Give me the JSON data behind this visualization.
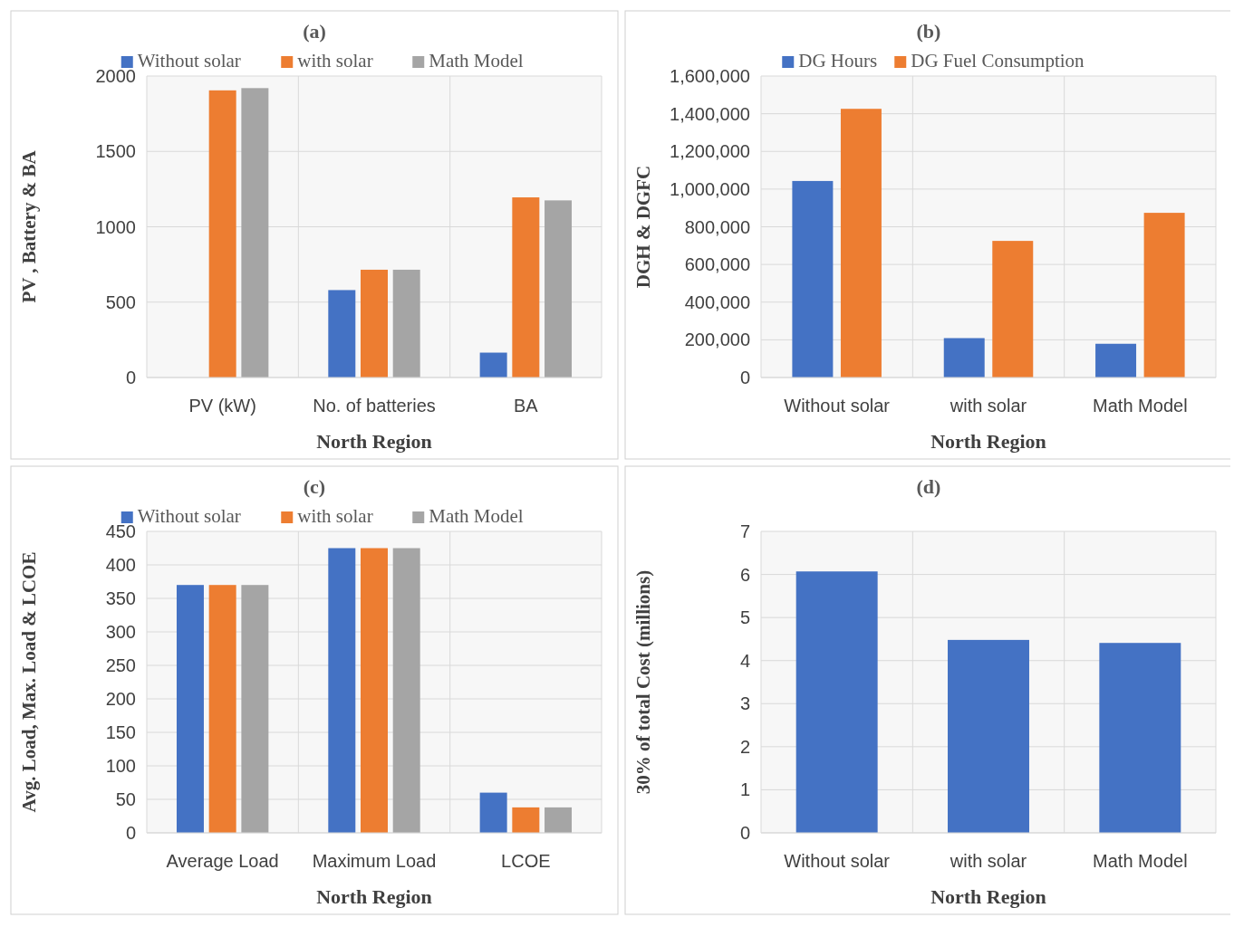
{
  "chart_data": [
    {
      "type": "bar",
      "title": "(a)",
      "xlabel": "North Region",
      "ylabel": "PV , Battery & BA",
      "categories": [
        "PV (kW)",
        "No. of batteries",
        "BA"
      ],
      "series": [
        {
          "name": "Without solar",
          "color": "#4472c4",
          "values": [
            0,
            580,
            165
          ]
        },
        {
          "name": "with solar",
          "color": "#ed7d31",
          "values": [
            1905,
            715,
            1195
          ]
        },
        {
          "name": "Math Model",
          "color": "#a5a5a5",
          "values": [
            1920,
            715,
            1175
          ]
        }
      ],
      "ylim": [
        0,
        2000
      ],
      "yticks": [
        0,
        500,
        1000,
        1500,
        2000
      ],
      "grid": true,
      "legend": "top"
    },
    {
      "type": "bar",
      "title": "(b)",
      "xlabel": "North Region",
      "ylabel": "DGH & DGFC",
      "categories": [
        "Without solar",
        "with solar",
        "Math Model"
      ],
      "series": [
        {
          "name": "DG Hours",
          "color": "#4472c4",
          "values": [
            1043000,
            209000,
            179000
          ]
        },
        {
          "name": "DG Fuel Consumption",
          "color": "#ed7d31",
          "values": [
            1426000,
            725000,
            874000
          ]
        }
      ],
      "ylim": [
        0,
        1600000
      ],
      "yticks": [
        0,
        {
          "value": 200000,
          "label": "200,000"
        },
        {
          "value": 400000,
          "label": "400,000"
        },
        {
          "value": 600000,
          "label": "600,000"
        },
        {
          "value": 800000,
          "label": "800,000"
        },
        {
          "value": 1000000,
          "label": "1,000,000"
        },
        {
          "value": 1200000,
          "label": "1,200,000"
        },
        {
          "value": 1400000,
          "label": "1,400,000"
        },
        {
          "value": 1600000,
          "label": "1,600,000"
        }
      ],
      "grid": true,
      "legend": "top"
    },
    {
      "type": "bar",
      "title": "(c)",
      "xlabel": "North Region",
      "ylabel": "Avg. Load, Max. Load & LCOE",
      "categories": [
        "Average Load",
        "Maximum Load",
        "LCOE"
      ],
      "series": [
        {
          "name": "Without solar",
          "color": "#4472c4",
          "values": [
            370,
            425,
            60
          ]
        },
        {
          "name": "with solar",
          "color": "#ed7d31",
          "values": [
            370,
            425,
            38
          ]
        },
        {
          "name": "Math Model",
          "color": "#a5a5a5",
          "values": [
            370,
            425,
            38
          ]
        }
      ],
      "ylim": [
        0,
        450
      ],
      "yticks": [
        0,
        50,
        100,
        150,
        200,
        250,
        300,
        350,
        400,
        450
      ],
      "grid": true,
      "legend": "top"
    },
    {
      "type": "bar",
      "title": "(d)",
      "xlabel": "North Region",
      "ylabel": "30% of total Cost (millions)",
      "categories": [
        "Without solar",
        "with solar",
        "Math Model"
      ],
      "series": [
        {
          "color": "#4472c4",
          "values": [
            6.07,
            4.48,
            4.41
          ]
        }
      ],
      "ylim": [
        0,
        7
      ],
      "yticks": [
        0,
        1,
        2,
        3,
        4,
        5,
        6,
        7
      ],
      "grid": true
    }
  ]
}
